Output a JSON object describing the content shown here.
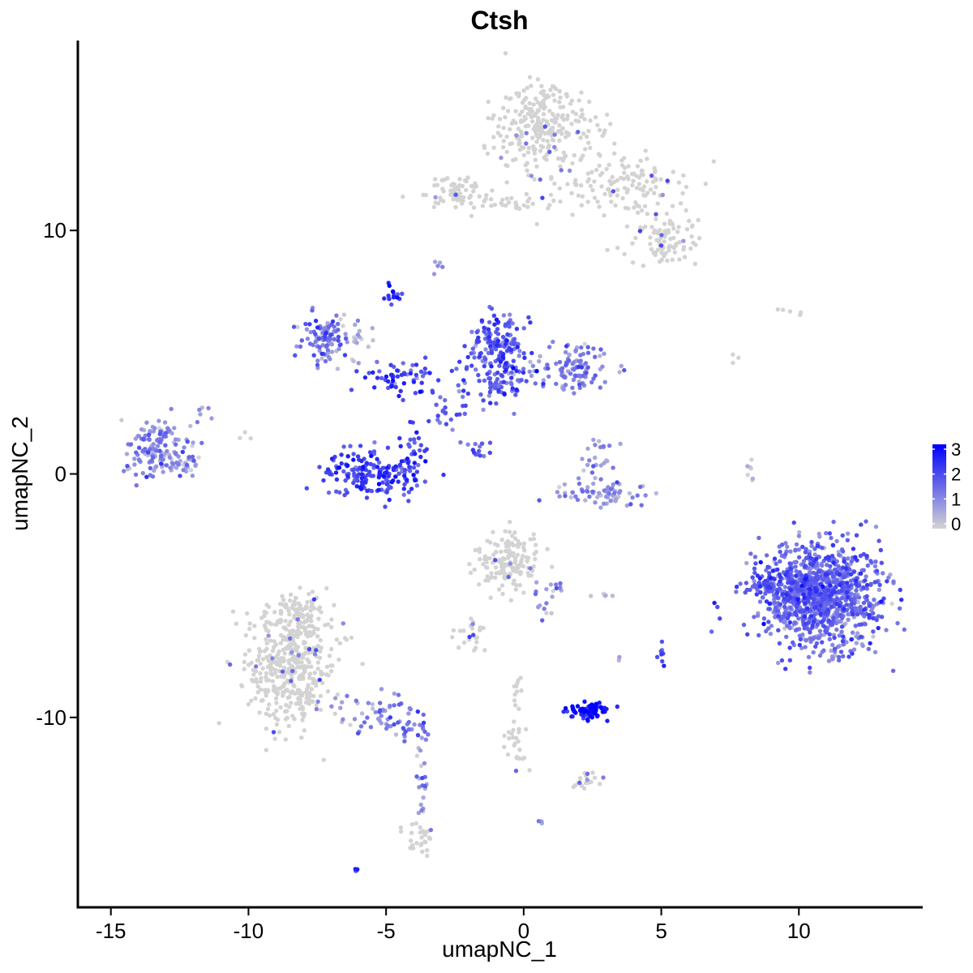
{
  "chart_data": {
    "type": "scatter",
    "title": "Ctsh",
    "xlabel": "umapNC_1",
    "ylabel": "umapNC_2",
    "xlim": [
      -16.2,
      14.5
    ],
    "ylim": [
      -17.8,
      17.8
    ],
    "x_ticks": [
      -15,
      -10,
      -5,
      0,
      5,
      10
    ],
    "x_tick_labels": [
      "-15",
      "-10",
      "-5",
      "0",
      "5",
      "10"
    ],
    "y_ticks": [
      -10,
      0,
      10
    ],
    "y_tick_labels": [
      "-10",
      "0",
      "10"
    ],
    "grid": false,
    "color_scale": {
      "variable": "expression",
      "min": 0,
      "max": 3,
      "low_color": "#d3d3d3",
      "high_color": "#0000ff",
      "ticks": [
        0,
        1,
        2,
        3
      ],
      "tick_labels": [
        "0",
        "1",
        "2",
        "3"
      ],
      "legend_position": "right"
    },
    "clusters": [
      {
        "cx": 0.8,
        "cy": 14.3,
        "sx": 0.9,
        "sy": 1.0,
        "n": 280,
        "expr": 0.05
      },
      {
        "cx": -2.4,
        "cy": 11.6,
        "sx": 0.55,
        "sy": 0.35,
        "n": 70,
        "expr": 0.15
      },
      {
        "cx": -0.6,
        "cy": 11.1,
        "sx": 0.8,
        "sy": 0.2,
        "n": 25,
        "expr": 0.1
      },
      {
        "cx": 3.6,
        "cy": 11.9,
        "sx": 1.1,
        "sy": 0.7,
        "n": 130,
        "expr": 0.08
      },
      {
        "cx": 5.2,
        "cy": 9.6,
        "sx": 0.6,
        "sy": 0.5,
        "n": 90,
        "expr": 0.05
      },
      {
        "cx": -3.0,
        "cy": 8.5,
        "sx": 0.12,
        "sy": 0.15,
        "n": 5,
        "expr": 0.6
      },
      {
        "cx": -7.2,
        "cy": 5.5,
        "sx": 0.45,
        "sy": 0.55,
        "n": 90,
        "expr": 1.3
      },
      {
        "cx": -4.7,
        "cy": 7.4,
        "sx": 0.15,
        "sy": 0.2,
        "n": 14,
        "expr": 2.3
      },
      {
        "cx": -4.6,
        "cy": 4.0,
        "sx": 0.9,
        "sy": 0.35,
        "n": 60,
        "expr": 2.0
      },
      {
        "cx": -0.9,
        "cy": 5.2,
        "sx": 0.55,
        "sy": 0.8,
        "n": 150,
        "expr": 1.8
      },
      {
        "cx": -0.9,
        "cy": 3.8,
        "sx": 0.7,
        "sy": 0.5,
        "n": 70,
        "expr": 1.7
      },
      {
        "cx": 1.8,
        "cy": 4.3,
        "sx": 0.7,
        "sy": 0.5,
        "n": 110,
        "expr": 1.1
      },
      {
        "cx": -2.8,
        "cy": 2.7,
        "sx": 0.3,
        "sy": 0.3,
        "n": 20,
        "expr": 1.8
      },
      {
        "cx": -5.5,
        "cy": 0.0,
        "sx": 0.9,
        "sy": 0.45,
        "n": 180,
        "expr": 2.0
      },
      {
        "cx": -4.0,
        "cy": 1.2,
        "sx": 0.3,
        "sy": 0.6,
        "n": 25,
        "expr": 1.9
      },
      {
        "cx": -1.6,
        "cy": 1.1,
        "sx": 0.35,
        "sy": 0.3,
        "n": 15,
        "expr": 1.5
      },
      {
        "cx": -13.3,
        "cy": 1.1,
        "sx": 0.65,
        "sy": 0.6,
        "n": 150,
        "expr": 1.0
      },
      {
        "cx": -12.2,
        "cy": 0.3,
        "sx": 0.25,
        "sy": 0.3,
        "n": 20,
        "expr": 0.5
      },
      {
        "cx": 2.8,
        "cy": 0.6,
        "sx": 0.3,
        "sy": 0.45,
        "n": 25,
        "expr": 0.8
      },
      {
        "cx": 2.9,
        "cy": -0.8,
        "sx": 0.9,
        "sy": 0.25,
        "n": 70,
        "expr": 0.9
      },
      {
        "cx": 8.2,
        "cy": 0.2,
        "sx": 0.12,
        "sy": 0.45,
        "n": 7,
        "expr": 0.3
      },
      {
        "cx": 10.8,
        "cy": -5.0,
        "sx": 1.1,
        "sy": 1.0,
        "n": 1100,
        "expr": 1.4
      },
      {
        "cx": 8.8,
        "cy": -4.6,
        "sx": 0.3,
        "sy": 0.4,
        "n": 50,
        "expr": 1.6
      },
      {
        "cx": -0.6,
        "cy": -3.5,
        "sx": 0.6,
        "sy": 0.55,
        "n": 150,
        "expr": 0.1
      },
      {
        "cx": 0.9,
        "cy": -5.0,
        "sx": 0.3,
        "sy": 0.5,
        "n": 20,
        "expr": 1.0
      },
      {
        "cx": -1.8,
        "cy": -6.6,
        "sx": 0.3,
        "sy": 0.35,
        "n": 25,
        "expr": 0.1
      },
      {
        "cx": -0.2,
        "cy": -9.0,
        "sx": 0.15,
        "sy": 0.4,
        "n": 10,
        "expr": 0.05
      },
      {
        "cx": -0.3,
        "cy": -11.0,
        "sx": 0.2,
        "sy": 0.6,
        "n": 25,
        "expr": 0.05
      },
      {
        "cx": 2.4,
        "cy": -9.7,
        "sx": 0.4,
        "sy": 0.15,
        "n": 80,
        "expr": 2.7
      },
      {
        "cx": 2.3,
        "cy": -12.6,
        "sx": 0.25,
        "sy": 0.15,
        "n": 20,
        "expr": 0.1
      },
      {
        "cx": 5.0,
        "cy": -7.3,
        "sx": 0.05,
        "sy": 0.3,
        "n": 8,
        "expr": 2.0
      },
      {
        "cx": 2.8,
        "cy": -4.9,
        "sx": 0.25,
        "sy": 0.1,
        "n": 5,
        "expr": 0.5
      },
      {
        "cx": 3.4,
        "cy": -7.6,
        "sx": 0.05,
        "sy": 0.1,
        "n": 2,
        "expr": 1.0
      },
      {
        "cx": -8.5,
        "cy": -8.0,
        "sx": 0.8,
        "sy": 1.2,
        "n": 420,
        "expr": 0.08
      },
      {
        "cx": -8.1,
        "cy": -5.8,
        "sx": 0.5,
        "sy": 0.5,
        "n": 80,
        "expr": 0.05
      },
      {
        "cx": -5.4,
        "cy": -9.8,
        "sx": 0.8,
        "sy": 0.45,
        "n": 55,
        "expr": 1.1
      },
      {
        "cx": -4.2,
        "cy": -10.6,
        "sx": 0.35,
        "sy": 0.25,
        "n": 20,
        "expr": 1.3
      },
      {
        "cx": -3.7,
        "cy": -12.6,
        "sx": 0.15,
        "sy": 0.9,
        "n": 20,
        "expr": 0.7
      },
      {
        "cx": -3.7,
        "cy": -14.9,
        "sx": 0.25,
        "sy": 0.35,
        "n": 30,
        "expr": 0.05
      },
      {
        "cx": -6.1,
        "cy": -16.3,
        "sx": 0.06,
        "sy": 0.06,
        "n": 4,
        "expr": 1.5
      },
      {
        "cx": 0.6,
        "cy": -14.3,
        "sx": 0.05,
        "sy": 0.05,
        "n": 3,
        "expr": 1.0
      },
      {
        "cx": 9.6,
        "cy": 6.7,
        "sx": 0.3,
        "sy": 0.08,
        "n": 5,
        "expr": 0.0
      },
      {
        "cx": 7.8,
        "cy": 4.6,
        "sx": 0.15,
        "sy": 0.3,
        "n": 3,
        "expr": 0.0
      },
      {
        "cx": -10.2,
        "cy": 1.4,
        "sx": 0.15,
        "sy": 0.2,
        "n": 3,
        "expr": 0.0
      },
      {
        "cx": -11.6,
        "cy": 2.6,
        "sx": 0.15,
        "sy": 0.25,
        "n": 6,
        "expr": 0.8
      },
      {
        "cx": -6.4,
        "cy": 5.6,
        "sx": 0.6,
        "sy": 0.5,
        "n": 30,
        "expr": 0.3
      }
    ]
  }
}
